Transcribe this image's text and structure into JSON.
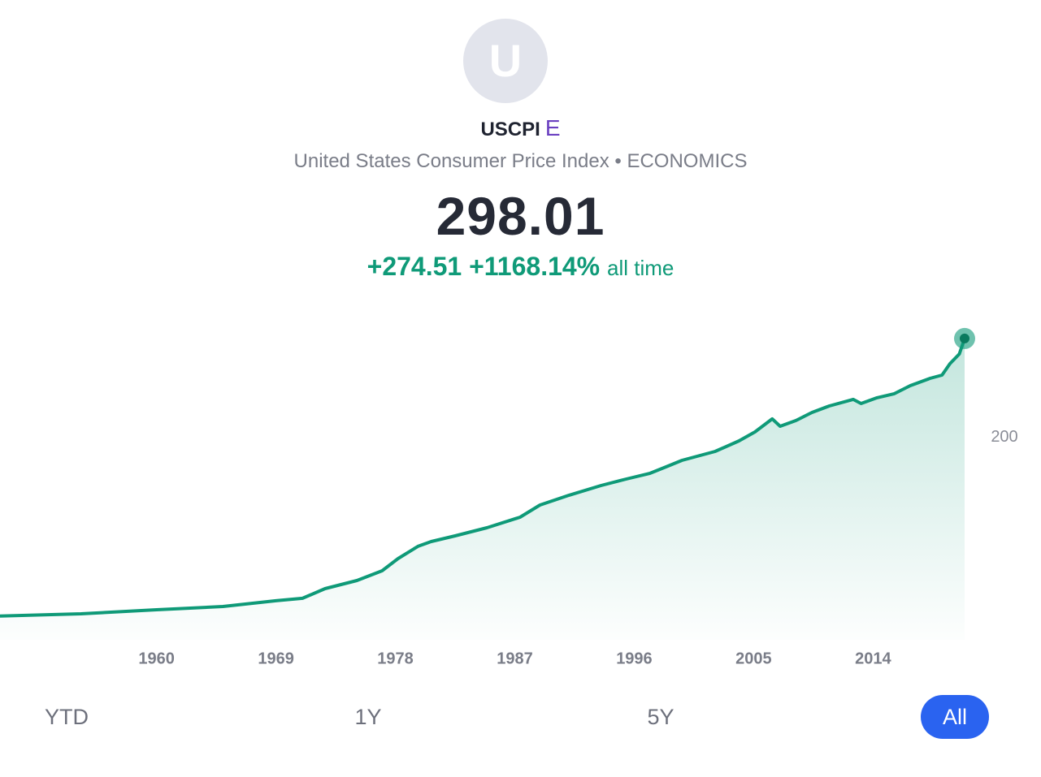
{
  "header": {
    "avatar_letter": "U",
    "ticker": "USCPI",
    "badge": "E",
    "name": "United States Consumer Price Index",
    "separator": "•",
    "category": "ECONOMICS",
    "price": "298.01",
    "change": "+274.51",
    "change_percent": "+1168.14%",
    "period": "all time"
  },
  "chart_data": {
    "type": "line",
    "color": "#0f9a78",
    "x": [
      1948.2,
      1954.3,
      1960.0,
      1965.0,
      1969.0,
      1971.0,
      1972.7,
      1975.1,
      1977.0,
      1978.2,
      1979.7,
      1980.7,
      1982.5,
      1984.9,
      1987.4,
      1988.9,
      1991.1,
      1993.5,
      1995.4,
      1997.2,
      1998.4,
      1999.6,
      2002.1,
      2003.9,
      2005.1,
      2006.4,
      2007.0,
      2008.2,
      2009.4,
      2010.7,
      2012.5,
      2013.1,
      2014.3,
      2015.6,
      2016.8,
      2018.3,
      2019.2,
      2019.8,
      2020.5,
      2020.9
    ],
    "values": [
      23.5,
      25.7,
      29.7,
      32.9,
      38.6,
      41.0,
      50.6,
      58.6,
      68.3,
      80.3,
      92.4,
      97.2,
      102.8,
      110.8,
      121.3,
      133.3,
      143.0,
      152.6,
      159.0,
      164.7,
      171.1,
      177.5,
      186.3,
      196.8,
      205.6,
      218.5,
      211.2,
      216.9,
      224.9,
      231.3,
      237.8,
      233.7,
      239.4,
      243.4,
      251.4,
      258.6,
      261.8,
      273.1,
      282.7,
      298.01
    ],
    "xlim": [
      1948.2,
      2020.9
    ],
    "xticks": [
      1960,
      1969,
      1978,
      1987,
      1996,
      2005,
      2014
    ],
    "ylim": [
      0,
      310
    ],
    "yticks": [
      200
    ]
  },
  "range_buttons": {
    "options": [
      "YTD",
      "1Y",
      "5Y",
      "All"
    ],
    "selected": 3
  }
}
